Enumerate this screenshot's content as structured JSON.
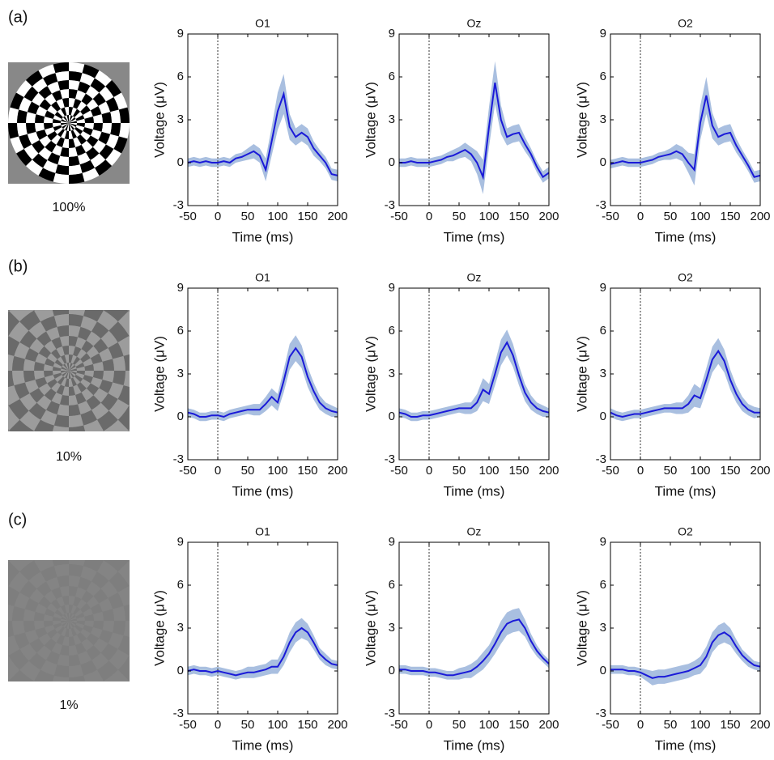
{
  "rows": [
    {
      "label": "(a)",
      "contrast": "100%"
    },
    {
      "label": "(b)",
      "contrast": "10%"
    },
    {
      "label": "(c)",
      "contrast": "1%"
    }
  ],
  "chart_data": [
    {
      "type": "line",
      "title": "O1",
      "xlabel": "Time (ms)",
      "ylabel": "Voltage (μV)",
      "xlim": [
        -50,
        200
      ],
      "ylim": [
        -3,
        9
      ],
      "xticks": [
        -50,
        0,
        50,
        100,
        150,
        200
      ],
      "yticks": [
        -3,
        0,
        3,
        6,
        9
      ],
      "vline": 0,
      "color": "#1a1ad8",
      "band_color": "#a9bfe0",
      "x": [
        -50,
        -40,
        -30,
        -20,
        -10,
        0,
        10,
        20,
        30,
        40,
        50,
        60,
        70,
        80,
        90,
        100,
        110,
        120,
        130,
        140,
        150,
        160,
        170,
        180,
        190,
        200
      ],
      "values": [
        0,
        0.1,
        0,
        0.1,
        0,
        0,
        0.1,
        0,
        0.3,
        0.4,
        0.6,
        0.8,
        0.5,
        -0.5,
        1.5,
        3.6,
        4.8,
        2.5,
        1.8,
        2.1,
        1.8,
        1.0,
        0.5,
        0,
        -0.8,
        -0.9
      ],
      "errors": [
        0.3,
        0.3,
        0.3,
        0.3,
        0.3,
        0.3,
        0.3,
        0.3,
        0.3,
        0.3,
        0.4,
        0.5,
        0.5,
        0.8,
        1.0,
        1.3,
        1.4,
        0.9,
        0.6,
        0.6,
        0.6,
        0.5,
        0.4,
        0.4,
        0.4,
        0.4
      ]
    },
    {
      "type": "line",
      "title": "Oz",
      "xlabel": "Time (ms)",
      "ylabel": "Voltage (μV)",
      "xlim": [
        -50,
        200
      ],
      "ylim": [
        -3,
        9
      ],
      "xticks": [
        -50,
        0,
        50,
        100,
        150,
        200
      ],
      "yticks": [
        -3,
        0,
        3,
        6,
        9
      ],
      "vline": 0,
      "color": "#1a1ad8",
      "band_color": "#a9bfe0",
      "x": [
        -50,
        -40,
        -30,
        -20,
        -10,
        0,
        10,
        20,
        30,
        40,
        50,
        60,
        70,
        80,
        90,
        100,
        110,
        120,
        130,
        140,
        150,
        160,
        170,
        180,
        190,
        200
      ],
      "values": [
        0,
        0,
        0.1,
        0,
        0,
        0,
        0.1,
        0.2,
        0.4,
        0.5,
        0.7,
        0.9,
        0.6,
        0,
        -1.0,
        2.5,
        5.6,
        3.0,
        1.8,
        2.0,
        2.1,
        1.3,
        0.6,
        -0.3,
        -1.0,
        -0.7
      ],
      "errors": [
        0.3,
        0.3,
        0.3,
        0.3,
        0.3,
        0.3,
        0.3,
        0.3,
        0.3,
        0.4,
        0.4,
        0.5,
        0.5,
        0.8,
        1.2,
        1.4,
        1.5,
        1.0,
        0.6,
        0.6,
        0.6,
        0.5,
        0.4,
        0.4,
        0.4,
        0.4
      ]
    },
    {
      "type": "line",
      "title": "O2",
      "xlabel": "Time (ms)",
      "ylabel": "Voltage (μV)",
      "xlim": [
        -50,
        200
      ],
      "ylim": [
        -3,
        9
      ],
      "xticks": [
        -50,
        0,
        50,
        100,
        150,
        200
      ],
      "yticks": [
        -3,
        0,
        3,
        6,
        9
      ],
      "vline": 0,
      "color": "#1a1ad8",
      "band_color": "#a9bfe0",
      "x": [
        -50,
        -40,
        -30,
        -20,
        -10,
        0,
        10,
        20,
        30,
        40,
        50,
        60,
        70,
        80,
        90,
        100,
        110,
        120,
        130,
        140,
        150,
        160,
        170,
        180,
        190,
        200
      ],
      "values": [
        -0.1,
        0,
        0.1,
        0,
        0,
        0,
        0.1,
        0.2,
        0.4,
        0.5,
        0.6,
        0.8,
        0.6,
        0,
        -0.5,
        2.8,
        4.7,
        2.6,
        1.8,
        2.0,
        2.1,
        1.2,
        0.5,
        -0.2,
        -1.0,
        -0.9
      ],
      "errors": [
        0.3,
        0.3,
        0.3,
        0.3,
        0.3,
        0.3,
        0.3,
        0.3,
        0.3,
        0.3,
        0.4,
        0.5,
        0.5,
        0.7,
        1.1,
        1.2,
        1.3,
        0.9,
        0.6,
        0.6,
        0.6,
        0.5,
        0.4,
        0.4,
        0.4,
        0.4
      ]
    },
    {
      "type": "line",
      "title": "O1",
      "xlabel": "Time (ms)",
      "ylabel": "Voltage (μV)",
      "xlim": [
        -50,
        200
      ],
      "ylim": [
        -3,
        9
      ],
      "xticks": [
        -50,
        0,
        50,
        100,
        150,
        200
      ],
      "yticks": [
        -3,
        0,
        3,
        6,
        9
      ],
      "vline": 0,
      "color": "#1a1ad8",
      "band_color": "#a9bfe0",
      "x": [
        -50,
        -40,
        -30,
        -20,
        -10,
        0,
        10,
        20,
        30,
        40,
        50,
        60,
        70,
        80,
        90,
        100,
        110,
        120,
        130,
        140,
        150,
        160,
        170,
        180,
        190,
        200
      ],
      "values": [
        0.3,
        0.2,
        0,
        0,
        0.1,
        0.1,
        0,
        0.2,
        0.3,
        0.4,
        0.5,
        0.5,
        0.5,
        0.9,
        1.4,
        1.0,
        2.5,
        4.2,
        4.8,
        4.2,
        2.8,
        1.8,
        1.0,
        0.6,
        0.4,
        0.3
      ],
      "errors": [
        0.3,
        0.3,
        0.3,
        0.3,
        0.3,
        0.3,
        0.3,
        0.3,
        0.3,
        0.3,
        0.3,
        0.4,
        0.4,
        0.5,
        0.6,
        0.6,
        0.8,
        0.9,
        0.9,
        0.8,
        0.7,
        0.6,
        0.5,
        0.4,
        0.4,
        0.3
      ]
    },
    {
      "type": "line",
      "title": "Oz",
      "xlabel": "Time (ms)",
      "ylabel": "Voltage (μV)",
      "xlim": [
        -50,
        200
      ],
      "ylim": [
        -3,
        9
      ],
      "xticks": [
        -50,
        0,
        50,
        100,
        150,
        200
      ],
      "yticks": [
        -3,
        0,
        3,
        6,
        9
      ],
      "vline": 0,
      "color": "#1a1ad8",
      "band_color": "#a9bfe0",
      "x": [
        -50,
        -40,
        -30,
        -20,
        -10,
        0,
        10,
        20,
        30,
        40,
        50,
        60,
        70,
        80,
        90,
        100,
        110,
        120,
        130,
        140,
        150,
        160,
        170,
        180,
        190,
        200
      ],
      "values": [
        0.3,
        0.2,
        0,
        0,
        0.1,
        0.1,
        0.2,
        0.3,
        0.4,
        0.5,
        0.6,
        0.6,
        0.6,
        1.0,
        1.9,
        1.6,
        3.0,
        4.5,
        5.2,
        4.3,
        2.9,
        1.7,
        1.0,
        0.6,
        0.4,
        0.3
      ],
      "errors": [
        0.3,
        0.3,
        0.3,
        0.3,
        0.3,
        0.3,
        0.3,
        0.3,
        0.3,
        0.3,
        0.3,
        0.4,
        0.4,
        0.6,
        0.8,
        0.7,
        0.8,
        0.9,
        0.9,
        0.8,
        0.7,
        0.6,
        0.5,
        0.4,
        0.4,
        0.3
      ]
    },
    {
      "type": "line",
      "title": "O2",
      "xlabel": "Time (ms)",
      "ylabel": "Voltage (μV)",
      "xlim": [
        -50,
        200
      ],
      "ylim": [
        -3,
        9
      ],
      "xticks": [
        -50,
        0,
        50,
        100,
        150,
        200
      ],
      "yticks": [
        -3,
        0,
        3,
        6,
        9
      ],
      "vline": 0,
      "color": "#1a1ad8",
      "band_color": "#a9bfe0",
      "x": [
        -50,
        -40,
        -30,
        -20,
        -10,
        0,
        10,
        20,
        30,
        40,
        50,
        60,
        70,
        80,
        90,
        100,
        110,
        120,
        130,
        140,
        150,
        160,
        170,
        180,
        190,
        200
      ],
      "values": [
        0.3,
        0.1,
        0,
        0.1,
        0.2,
        0.2,
        0.3,
        0.4,
        0.5,
        0.6,
        0.6,
        0.6,
        0.6,
        0.9,
        1.5,
        1.3,
        2.6,
        4.0,
        4.6,
        3.9,
        2.6,
        1.6,
        0.9,
        0.5,
        0.3,
        0.3
      ],
      "errors": [
        0.3,
        0.3,
        0.3,
        0.3,
        0.3,
        0.3,
        0.3,
        0.3,
        0.3,
        0.3,
        0.3,
        0.4,
        0.4,
        0.6,
        0.8,
        0.7,
        0.8,
        0.9,
        0.9,
        0.8,
        0.7,
        0.6,
        0.5,
        0.4,
        0.4,
        0.3
      ]
    },
    {
      "type": "line",
      "title": "O1",
      "xlabel": "Time (ms)",
      "ylabel": "Voltage (μV)",
      "xlim": [
        -50,
        200
      ],
      "ylim": [
        -3,
        9
      ],
      "xticks": [
        -50,
        0,
        50,
        100,
        150,
        200
      ],
      "yticks": [
        -3,
        0,
        3,
        6,
        9
      ],
      "vline": 0,
      "color": "#1a1ad8",
      "band_color": "#a9bfe0",
      "x": [
        -50,
        -40,
        -30,
        -20,
        -10,
        0,
        10,
        20,
        30,
        40,
        50,
        60,
        70,
        80,
        90,
        100,
        110,
        120,
        130,
        140,
        150,
        160,
        170,
        180,
        190,
        200
      ],
      "values": [
        0,
        0.1,
        0,
        0,
        -0.1,
        0,
        -0.1,
        -0.2,
        -0.3,
        -0.2,
        -0.1,
        -0.1,
        0,
        0.1,
        0.3,
        0.3,
        1.0,
        2.0,
        2.7,
        3.0,
        2.7,
        2.0,
        1.2,
        0.8,
        0.5,
        0.4
      ],
      "errors": [
        0.3,
        0.3,
        0.3,
        0.3,
        0.3,
        0.3,
        0.3,
        0.3,
        0.3,
        0.3,
        0.4,
        0.4,
        0.4,
        0.4,
        0.5,
        0.5,
        0.6,
        0.7,
        0.7,
        0.7,
        0.6,
        0.5,
        0.4,
        0.4,
        0.3,
        0.3
      ]
    },
    {
      "type": "line",
      "title": "Oz",
      "xlabel": "Time (ms)",
      "ylabel": "Voltage (μV)",
      "xlim": [
        -50,
        200
      ],
      "ylim": [
        -3,
        9
      ],
      "xticks": [
        -50,
        0,
        50,
        100,
        150,
        200
      ],
      "yticks": [
        -3,
        0,
        3,
        6,
        9
      ],
      "vline": 0,
      "color": "#1a1ad8",
      "band_color": "#a9bfe0",
      "x": [
        -50,
        -40,
        -30,
        -20,
        -10,
        0,
        10,
        20,
        30,
        40,
        50,
        60,
        70,
        80,
        90,
        100,
        110,
        120,
        130,
        140,
        150,
        160,
        170,
        180,
        190,
        200
      ],
      "values": [
        0.1,
        0.1,
        0,
        0,
        0,
        -0.1,
        -0.1,
        -0.2,
        -0.3,
        -0.3,
        -0.2,
        -0.1,
        0,
        0.3,
        0.7,
        1.2,
        1.9,
        2.7,
        3.3,
        3.5,
        3.6,
        3.0,
        2.1,
        1.4,
        0.9,
        0.5
      ],
      "errors": [
        0.3,
        0.3,
        0.3,
        0.3,
        0.3,
        0.3,
        0.3,
        0.3,
        0.3,
        0.3,
        0.4,
        0.4,
        0.5,
        0.5,
        0.6,
        0.6,
        0.7,
        0.8,
        0.8,
        0.8,
        0.8,
        0.6,
        0.5,
        0.4,
        0.3,
        0.3
      ]
    },
    {
      "type": "line",
      "title": "O2",
      "xlabel": "Time (ms)",
      "ylabel": "Voltage (μV)",
      "xlim": [
        -50,
        200
      ],
      "ylim": [
        -3,
        9
      ],
      "xticks": [
        -50,
        0,
        50,
        100,
        150,
        200
      ],
      "yticks": [
        -3,
        0,
        3,
        6,
        9
      ],
      "vline": 0,
      "color": "#1a1ad8",
      "band_color": "#a9bfe0",
      "x": [
        -50,
        -40,
        -30,
        -20,
        -10,
        0,
        10,
        20,
        30,
        40,
        50,
        60,
        70,
        80,
        90,
        100,
        110,
        120,
        130,
        140,
        150,
        160,
        170,
        180,
        190,
        200
      ],
      "values": [
        0.1,
        0.1,
        0.1,
        0,
        0,
        -0.1,
        -0.3,
        -0.5,
        -0.4,
        -0.4,
        -0.3,
        -0.2,
        -0.1,
        0,
        0.2,
        0.4,
        1.0,
        2.0,
        2.5,
        2.7,
        2.4,
        1.7,
        1.1,
        0.7,
        0.4,
        0.3
      ],
      "errors": [
        0.3,
        0.3,
        0.3,
        0.3,
        0.3,
        0.3,
        0.4,
        0.5,
        0.5,
        0.5,
        0.5,
        0.5,
        0.5,
        0.5,
        0.5,
        0.6,
        0.7,
        0.7,
        0.7,
        0.7,
        0.6,
        0.5,
        0.4,
        0.4,
        0.3,
        0.3
      ]
    }
  ]
}
